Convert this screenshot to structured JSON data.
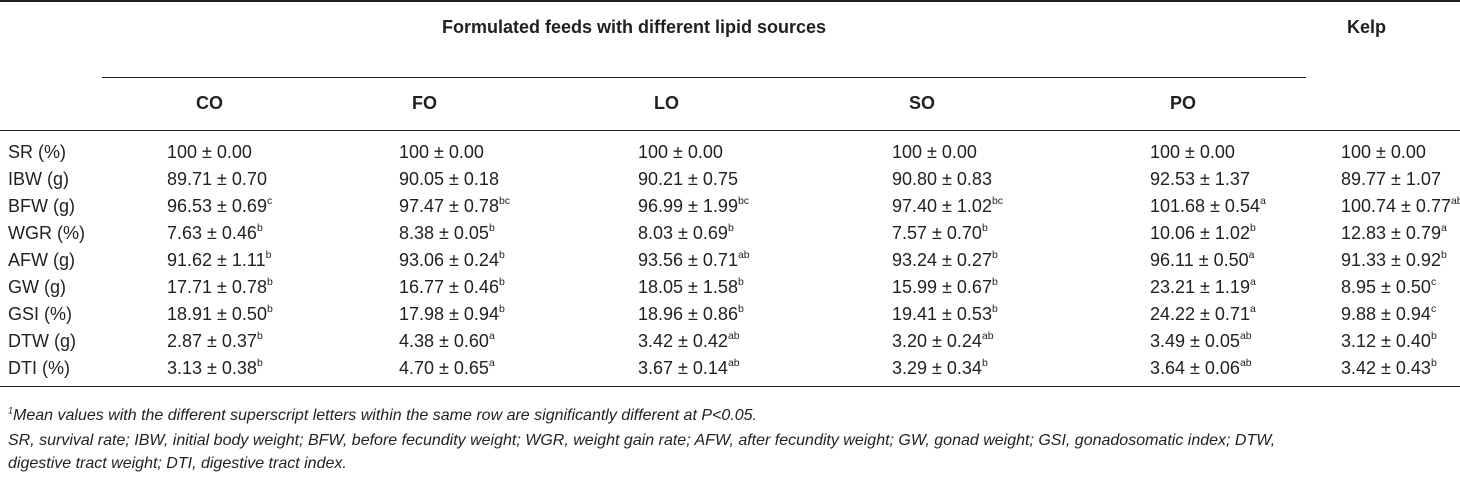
{
  "table": {
    "group_header": "Formulated feeds with different lipid sources",
    "kelp_header": "Kelp",
    "columns": [
      "CO",
      "FO",
      "LO",
      "SO",
      "PO"
    ],
    "rows": [
      {
        "label": "SR (%)",
        "cells": [
          {
            "v": "100 ± 0.00",
            "s": ""
          },
          {
            "v": "100 ± 0.00",
            "s": ""
          },
          {
            "v": "100 ± 0.00",
            "s": ""
          },
          {
            "v": "100 ± 0.00",
            "s": ""
          },
          {
            "v": "100 ± 0.00",
            "s": ""
          },
          {
            "v": "100 ± 0.00",
            "s": ""
          }
        ]
      },
      {
        "label": "IBW (g)",
        "cells": [
          {
            "v": "89.71 ± 0.70",
            "s": ""
          },
          {
            "v": "90.05 ± 0.18",
            "s": ""
          },
          {
            "v": "90.21 ± 0.75",
            "s": ""
          },
          {
            "v": "90.80 ± 0.83",
            "s": ""
          },
          {
            "v": "92.53 ± 1.37",
            "s": ""
          },
          {
            "v": "89.77 ± 1.07",
            "s": ""
          }
        ]
      },
      {
        "label": "BFW (g)",
        "cells": [
          {
            "v": "96.53 ± 0.69",
            "s": "c"
          },
          {
            "v": "97.47 ± 0.78",
            "s": "bc"
          },
          {
            "v": "96.99 ± 1.99",
            "s": "bc"
          },
          {
            "v": "97.40 ± 1.02",
            "s": "bc"
          },
          {
            "v": "101.68 ± 0.54",
            "s": "a"
          },
          {
            "v": "100.74 ± 0.77",
            "s": "ab"
          }
        ]
      },
      {
        "label": "WGR (%)",
        "cells": [
          {
            "v": "7.63 ± 0.46",
            "s": "b"
          },
          {
            "v": "8.38 ± 0.05",
            "s": "b"
          },
          {
            "v": "8.03 ± 0.69",
            "s": "b"
          },
          {
            "v": "7.57 ± 0.70",
            "s": "b"
          },
          {
            "v": "10.06 ± 1.02",
            "s": "b"
          },
          {
            "v": "12.83 ± 0.79",
            "s": "a"
          }
        ]
      },
      {
        "label": "AFW (g)",
        "cells": [
          {
            "v": "91.62 ± 1.11",
            "s": "b"
          },
          {
            "v": "93.06 ± 0.24",
            "s": "b"
          },
          {
            "v": "93.56 ± 0.71",
            "s": "ab"
          },
          {
            "v": "93.24 ± 0.27",
            "s": "b"
          },
          {
            "v": "96.11 ± 0.50",
            "s": "a"
          },
          {
            "v": "91.33 ± 0.92",
            "s": "b"
          }
        ]
      },
      {
        "label": "GW (g)",
        "cells": [
          {
            "v": "17.71 ± 0.78",
            "s": "b"
          },
          {
            "v": "16.77 ± 0.46",
            "s": "b"
          },
          {
            "v": "18.05 ± 1.58",
            "s": "b"
          },
          {
            "v": "15.99 ± 0.67",
            "s": "b"
          },
          {
            "v": "23.21 ± 1.19",
            "s": "a"
          },
          {
            "v": "8.95 ± 0.50",
            "s": "c"
          }
        ]
      },
      {
        "label": "GSI (%)",
        "cells": [
          {
            "v": "18.91 ± 0.50",
            "s": "b"
          },
          {
            "v": "17.98 ± 0.94",
            "s": "b"
          },
          {
            "v": "18.96 ± 0.86",
            "s": "b"
          },
          {
            "v": "19.41 ± 0.53",
            "s": "b"
          },
          {
            "v": "24.22 ± 0.71",
            "s": "a"
          },
          {
            "v": "9.88 ± 0.94",
            "s": "c"
          }
        ]
      },
      {
        "label": "DTW (g)",
        "cells": [
          {
            "v": "2.87 ± 0.37",
            "s": "b"
          },
          {
            "v": "4.38 ± 0.60",
            "s": "a"
          },
          {
            "v": "3.42 ± 0.42",
            "s": "ab"
          },
          {
            "v": "3.20 ± 0.24",
            "s": "ab"
          },
          {
            "v": "3.49 ± 0.05",
            "s": "ab"
          },
          {
            "v": "3.12 ± 0.40",
            "s": "b"
          }
        ]
      },
      {
        "label": "DTI (%)",
        "cells": [
          {
            "v": "3.13 ± 0.38",
            "s": "b"
          },
          {
            "v": "4.70 ± 0.65",
            "s": "a"
          },
          {
            "v": "3.67 ± 0.14",
            "s": "ab"
          },
          {
            "v": "3.29 ± 0.34",
            "s": "b"
          },
          {
            "v": "3.64 ± 0.06",
            "s": "ab"
          },
          {
            "v": "3.42 ± 0.43",
            "s": "b"
          }
        ]
      }
    ]
  },
  "footnotes": {
    "marker": "1",
    "note1": "Mean values with the different superscript letters within the same row are significantly different at P<0.05.",
    "note2_line1": "SR, survival rate; IBW, initial body weight; BFW, before fecundity weight; WGR, weight gain rate; AFW, after fecundity weight; GW, gonad weight; GSI, gonadosomatic index; DTW,",
    "note2_line2": "digestive tract weight; DTI, digestive tract index."
  }
}
